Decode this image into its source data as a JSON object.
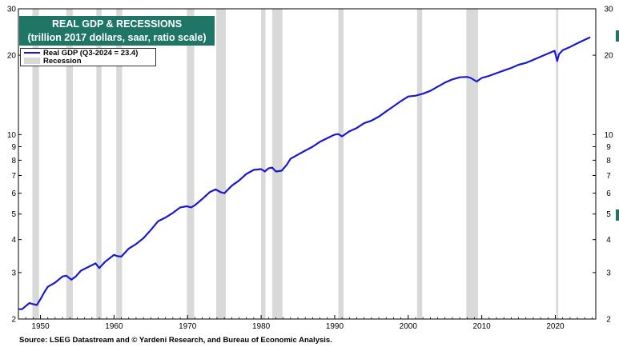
{
  "colors": {
    "title_bg": "#1f7566",
    "series": "#1a1acc",
    "recession": "#d9d9d9"
  },
  "title_lines": [
    "REAL GDP & RECESSIONS",
    "(trillion 2017 dollars, saar, ratio scale)"
  ],
  "legend": {
    "series_label": "Real GDP  (Q3-2024 = 23.4)",
    "recession_label": "Recession"
  },
  "source": "Source: LSEG Datastream and © Yardeni Research, and Bureau of Economic Analysis.",
  "chart_data": {
    "type": "line",
    "title": "REAL GDP & RECESSIONS",
    "subtitle": "(trillion 2017 dollars, saar, ratio scale)",
    "y_scale": "log",
    "ylim": [
      2,
      30
    ],
    "xlim": [
      1947,
      2025.5
    ],
    "x_ticks": [
      1950,
      1960,
      1970,
      1980,
      1990,
      2000,
      2010,
      2020
    ],
    "y_ticks": [
      2,
      3,
      4,
      5,
      6,
      7,
      8,
      9,
      10,
      20,
      30
    ],
    "legend_position": "top-left",
    "recessions": [
      [
        1948.9,
        1949.8
      ],
      [
        1953.5,
        1954.4
      ],
      [
        1957.6,
        1958.3
      ],
      [
        1960.3,
        1961.1
      ],
      [
        1969.9,
        1970.9
      ],
      [
        1973.9,
        1975.2
      ],
      [
        1980.0,
        1980.6
      ],
      [
        1981.5,
        1982.9
      ],
      [
        1990.5,
        1991.2
      ],
      [
        2001.2,
        2001.9
      ],
      [
        2007.9,
        2009.5
      ],
      [
        2020.1,
        2020.4
      ]
    ],
    "series": [
      {
        "name": "Real GDP  (Q3-2024 = 23.4)",
        "x": [
          1947.0,
          1947.5,
          1948.0,
          1948.5,
          1948.9,
          1949.5,
          1950.0,
          1950.5,
          1951.0,
          1952.0,
          1953.0,
          1953.5,
          1954.2,
          1954.8,
          1955.5,
          1956.5,
          1957.5,
          1958.0,
          1958.8,
          1960.0,
          1960.5,
          1961.0,
          1962.0,
          1963.0,
          1964.0,
          1965.0,
          1966.0,
          1967.0,
          1968.0,
          1969.0,
          1969.9,
          1970.5,
          1971.0,
          1972.0,
          1973.0,
          1973.8,
          1974.5,
          1975.0,
          1976.0,
          1977.0,
          1978.0,
          1979.0,
          1980.0,
          1980.5,
          1981.0,
          1981.5,
          1982.0,
          1982.8,
          1983.5,
          1984.0,
          1985.0,
          1986.0,
          1987.0,
          1988.0,
          1989.0,
          1990.0,
          1990.5,
          1991.0,
          1992.0,
          1993.0,
          1994.0,
          1995.0,
          1996.0,
          1997.0,
          1998.0,
          1999.0,
          2000.0,
          2001.0,
          2002.0,
          2003.0,
          2004.0,
          2005.0,
          2006.0,
          2007.0,
          2008.0,
          2008.5,
          2009.3,
          2010.0,
          2011.0,
          2012.0,
          2013.0,
          2014.0,
          2015.0,
          2016.0,
          2017.0,
          2018.0,
          2019.0,
          2019.9,
          2020.25,
          2020.5,
          2021.0,
          2022.0,
          2023.0,
          2024.0,
          2024.75
        ],
        "y": [
          2.18,
          2.18,
          2.24,
          2.3,
          2.28,
          2.26,
          2.38,
          2.52,
          2.65,
          2.75,
          2.9,
          2.92,
          2.82,
          2.9,
          3.05,
          3.15,
          3.25,
          3.12,
          3.3,
          3.5,
          3.46,
          3.45,
          3.7,
          3.85,
          4.05,
          4.35,
          4.7,
          4.85,
          5.05,
          5.3,
          5.35,
          5.3,
          5.4,
          5.7,
          6.05,
          6.2,
          6.05,
          6.0,
          6.4,
          6.7,
          7.1,
          7.35,
          7.4,
          7.25,
          7.45,
          7.5,
          7.25,
          7.3,
          7.7,
          8.1,
          8.4,
          8.7,
          9.0,
          9.4,
          9.7,
          10.0,
          10.05,
          9.85,
          10.3,
          10.6,
          11.05,
          11.3,
          11.7,
          12.25,
          12.8,
          13.4,
          13.95,
          14.05,
          14.3,
          14.65,
          15.2,
          15.75,
          16.2,
          16.5,
          16.55,
          16.4,
          15.9,
          16.4,
          16.7,
          17.1,
          17.5,
          17.9,
          18.4,
          18.7,
          19.2,
          19.75,
          20.3,
          20.8,
          19.0,
          20.2,
          20.9,
          21.5,
          22.2,
          22.9,
          23.4
        ]
      }
    ]
  }
}
